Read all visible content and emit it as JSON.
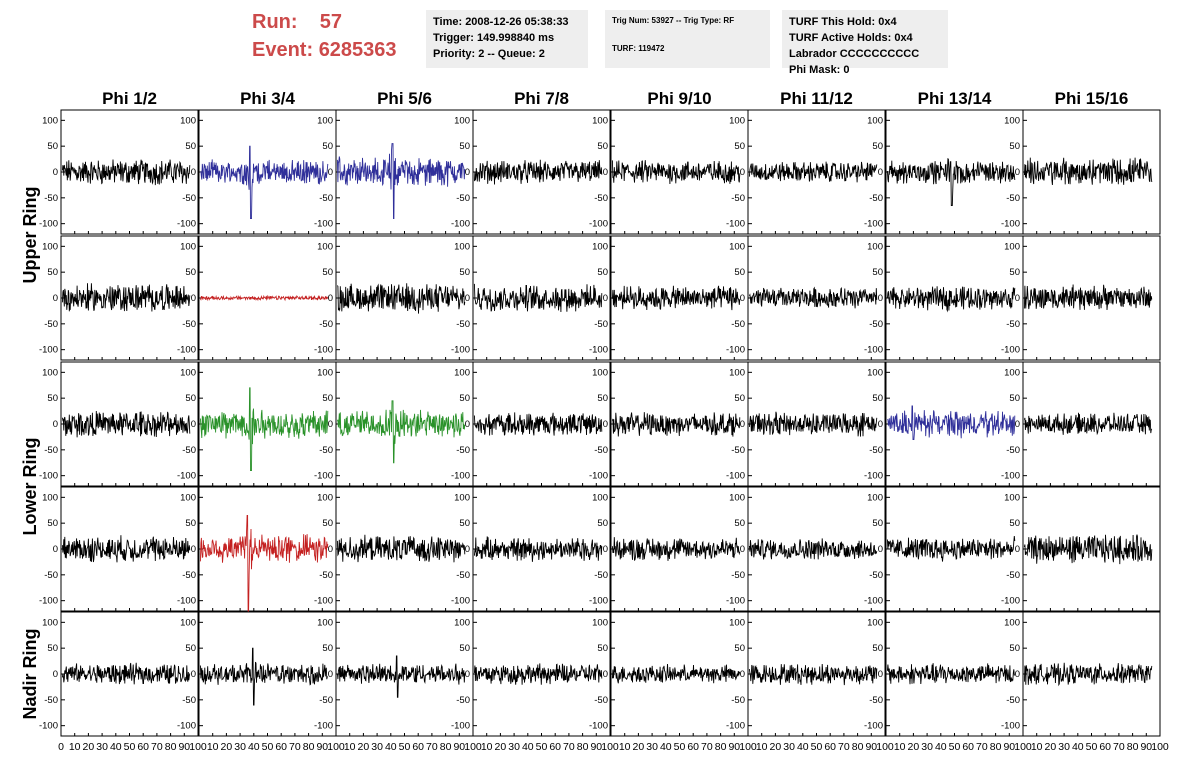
{
  "header": {
    "run_label": "Run:",
    "run_value": "57",
    "event_label": "Event:",
    "event_value": "6285363",
    "time": "Time: 2008-12-26 05:38:33",
    "trigger": "Trigger: 149.998840 ms",
    "priority": "Priority: 2 -- Queue: 2",
    "trig_num": "Trig Num: 53927 -- Trig Type: RF",
    "turf": "TURF: 119472",
    "turf_this_hold": "TURF This Hold: 0x4",
    "turf_active_holds": "TURF Active Holds: 0x4",
    "labrador": "Labrador CCCCCCCCCC",
    "phi_mask": "Phi Mask: 0"
  },
  "chart_data": {
    "type": "line",
    "columns": [
      "Phi 1/2",
      "Phi 3/4",
      "Phi 5/6",
      "Phi 7/8",
      "Phi 9/10",
      "Phi 11/12",
      "Phi 13/14",
      "Phi 15/16"
    ],
    "ring_labels": [
      "Upper Ring",
      "Lower Ring",
      "Nadir Ring"
    ],
    "rows": 5,
    "xlim": [
      0,
      100
    ],
    "ylim": [
      -120,
      120
    ],
    "yticks": [
      "100",
      "50",
      "0",
      "-50",
      "-100"
    ],
    "xticks": [
      "0",
      "10",
      "20",
      "30",
      "40",
      "50",
      "60",
      "70",
      "80",
      "90",
      "100"
    ],
    "colors": {
      "default": "#000000",
      "blue": "#2f2f9a",
      "red": "#c42020",
      "green": "#2a922a"
    },
    "panels": [
      [
        "black",
        "blue",
        "blue",
        "black",
        "black",
        "black",
        "black",
        "black"
      ],
      [
        "black",
        "red",
        "black",
        "black",
        "black",
        "black",
        "black",
        "black"
      ],
      [
        "black",
        "green",
        "green",
        "black",
        "black",
        "black",
        "blue",
        "black"
      ],
      [
        "black",
        "red",
        "black",
        "black",
        "black",
        "black",
        "black",
        "black"
      ],
      [
        "black",
        "black",
        "black",
        "black",
        "black",
        "black",
        "black",
        "black"
      ]
    ],
    "noise_amplitude": [
      [
        20,
        18,
        22,
        18,
        18,
        16,
        18,
        22
      ],
      [
        22,
        3,
        22,
        20,
        18,
        16,
        18,
        20
      ],
      [
        20,
        22,
        22,
        18,
        18,
        18,
        20,
        16
      ],
      [
        20,
        22,
        20,
        18,
        18,
        16,
        18,
        22
      ],
      [
        16,
        16,
        16,
        16,
        14,
        16,
        16,
        16
      ]
    ],
    "peaks": [
      [
        null,
        {
          "x": 38,
          "min": -90,
          "max": 50
        },
        {
          "x": 42,
          "min": -90,
          "max": 55
        },
        null,
        null,
        null,
        {
          "x": 48,
          "min": -65,
          "max": 20
        },
        null
      ],
      [
        null,
        null,
        null,
        null,
        null,
        null,
        null,
        null
      ],
      [
        null,
        {
          "x": 38,
          "min": -90,
          "max": 70
        },
        {
          "x": 42,
          "min": -75,
          "max": 45
        },
        null,
        null,
        null,
        {
          "x": 20,
          "min": -30,
          "max": 35
        },
        null
      ],
      [
        null,
        {
          "x": 36,
          "min": -120,
          "max": 65
        },
        null,
        null,
        null,
        null,
        null,
        null
      ],
      [
        null,
        {
          "x": 40,
          "min": -60,
          "max": 50
        },
        {
          "x": 45,
          "min": -45,
          "max": 35
        },
        null,
        null,
        null,
        null,
        null
      ]
    ]
  }
}
